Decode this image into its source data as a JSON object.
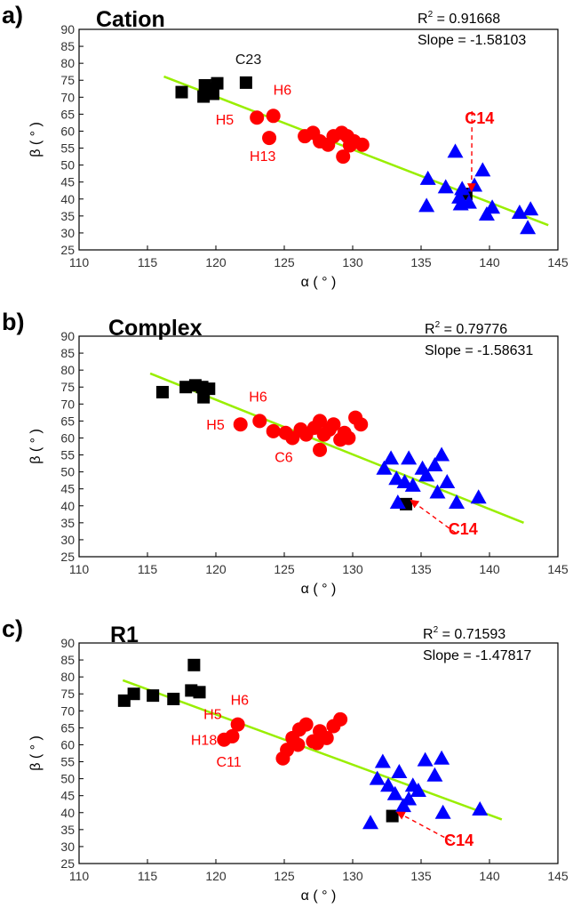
{
  "colors": {
    "group1": "#000000",
    "group2": "#ff0000",
    "group3": "#0000ff",
    "fit": "#99ee00",
    "highlight": "#ff0000",
    "label_black": "#111111"
  },
  "chart_data": [
    {
      "type": "scatter",
      "panel_letter": "a)",
      "title": "Cation",
      "stats": {
        "r2_prefix": "R",
        "r2_sup": "2",
        "r2_value": " = 0.91668",
        "slope": "Slope = -1.58103"
      },
      "xlabel": "α ( ° )",
      "ylabel": "β ( ° )",
      "xlim": [
        110,
        145
      ],
      "ylim": [
        25,
        90
      ],
      "xticks": [
        110,
        115,
        120,
        125,
        130,
        135,
        140,
        145
      ],
      "yticks": [
        25,
        30,
        35,
        40,
        45,
        50,
        55,
        60,
        65,
        70,
        75,
        80,
        85,
        90
      ],
      "fit_line": {
        "x": [
          116.2,
          144.3
        ],
        "y": [
          76.1,
          32.3
        ]
      },
      "series": [
        {
          "name": "black",
          "marker": "square",
          "color": "#000000",
          "points": [
            [
              117.5,
              71.5
            ],
            [
              119.2,
              73.5
            ],
            [
              119.5,
              72.5
            ],
            [
              119.1,
              70.2
            ],
            [
              120.1,
              74.1
            ],
            [
              119.8,
              71.0
            ],
            [
              122.2,
              74.3
            ],
            [
              138.3,
              41.5
            ]
          ]
        },
        {
          "name": "red",
          "marker": "circle",
          "color": "#ff0000",
          "points": [
            [
              123.0,
              64.0
            ],
            [
              124.2,
              64.5
            ],
            [
              123.9,
              58.0
            ],
            [
              126.5,
              58.5
            ],
            [
              127.1,
              59.5
            ],
            [
              127.6,
              57.0
            ],
            [
              128.2,
              56.0
            ],
            [
              128.6,
              58.5
            ],
            [
              129.2,
              59.5
            ],
            [
              129.6,
              58.5
            ],
            [
              129.8,
              55.8
            ],
            [
              129.3,
              52.5
            ],
            [
              130.1,
              57.0
            ],
            [
              130.7,
              56.0
            ]
          ]
        },
        {
          "name": "blue",
          "marker": "triangle",
          "color": "#0000ff",
          "points": [
            [
              135.5,
              46.0
            ],
            [
              135.4,
              38.0
            ],
            [
              136.8,
              43.5
            ],
            [
              137.5,
              54.0
            ],
            [
              137.8,
              40.5
            ],
            [
              137.9,
              38.5
            ],
            [
              138.0,
              43.0
            ],
            [
              138.5,
              39.0
            ],
            [
              138.9,
              44.0
            ],
            [
              139.5,
              48.5
            ],
            [
              139.8,
              35.5
            ],
            [
              140.2,
              37.5
            ],
            [
              142.2,
              36.0
            ],
            [
              143.0,
              37.0
            ],
            [
              142.8,
              31.5
            ]
          ]
        }
      ],
      "annotations": [
        {
          "text": "C23",
          "x": 122.2,
          "y": 75.0,
          "color": "#111111",
          "bold": false,
          "dx": -12,
          "dy": -18,
          "anchor": "start"
        },
        {
          "text": "H6",
          "x": 124.2,
          "y": 64.5,
          "color": "#ff0000",
          "bold": false,
          "dx": 0,
          "dy": -24,
          "anchor": "start"
        },
        {
          "text": "H5",
          "x": 123.0,
          "y": 64.0,
          "color": "#ff0000",
          "bold": false,
          "dx": -26,
          "dy": 8,
          "anchor": "end"
        },
        {
          "text": "H13",
          "x": 123.9,
          "y": 58.0,
          "color": "#ff0000",
          "bold": false,
          "dx": -22,
          "dy": 26,
          "anchor": "start"
        }
      ],
      "callout": {
        "text": "C14",
        "x": 138.3,
        "y": 41.5,
        "tx": 138.2,
        "ty": 62.2,
        "ldx": 0,
        "ldy": -14,
        "anchor": "start"
      }
    },
    {
      "type": "scatter",
      "panel_letter": "b)",
      "title": "Complex",
      "stats": {
        "r2_prefix": "R",
        "r2_sup": "2",
        "r2_value": " = 0.79776",
        "slope": "Slope = -1.58631"
      },
      "xlabel": "α ( ° )",
      "ylabel": "β ( ° )",
      "xlim": [
        110,
        145
      ],
      "ylim": [
        25,
        90
      ],
      "xticks": [
        110,
        115,
        120,
        125,
        130,
        135,
        140,
        145
      ],
      "yticks": [
        25,
        30,
        35,
        40,
        45,
        50,
        55,
        60,
        65,
        70,
        75,
        80,
        85,
        90
      ],
      "fit_line": {
        "x": [
          115.2,
          142.5
        ],
        "y": [
          79.0,
          35.0
        ]
      },
      "series": [
        {
          "name": "black",
          "marker": "square",
          "color": "#000000",
          "points": [
            [
              116.1,
              73.5
            ],
            [
              117.8,
              75.0
            ],
            [
              118.5,
              75.5
            ],
            [
              119.0,
              75.0
            ],
            [
              119.5,
              74.5
            ],
            [
              119.1,
              72.0
            ],
            [
              133.9,
              40.5
            ]
          ]
        },
        {
          "name": "red",
          "marker": "circle",
          "color": "#ff0000",
          "points": [
            [
              121.8,
              64.0
            ],
            [
              123.2,
              65.0
            ],
            [
              124.2,
              62.0
            ],
            [
              125.1,
              61.5
            ],
            [
              125.6,
              60.0
            ],
            [
              126.2,
              62.5
            ],
            [
              126.6,
              61.0
            ],
            [
              127.2,
              63.0
            ],
            [
              127.6,
              65.0
            ],
            [
              127.9,
              61.0
            ],
            [
              128.3,
              62.5
            ],
            [
              128.6,
              64.0
            ],
            [
              129.1,
              59.5
            ],
            [
              129.4,
              61.5
            ],
            [
              129.7,
              60.0
            ],
            [
              130.2,
              66.0
            ],
            [
              130.6,
              64.0
            ],
            [
              127.6,
              56.5
            ]
          ]
        },
        {
          "name": "blue",
          "marker": "triangle",
          "color": "#0000ff",
          "points": [
            [
              132.3,
              51.0
            ],
            [
              132.8,
              54.0
            ],
            [
              133.2,
              48.0
            ],
            [
              133.3,
              41.0
            ],
            [
              133.8,
              47.0
            ],
            [
              134.1,
              54.0
            ],
            [
              134.4,
              46.0
            ],
            [
              135.1,
              51.0
            ],
            [
              135.4,
              49.0
            ],
            [
              136.0,
              52.0
            ],
            [
              136.5,
              55.0
            ],
            [
              136.9,
              47.0
            ],
            [
              136.2,
              44.0
            ],
            [
              137.6,
              41.0
            ],
            [
              139.2,
              42.5
            ]
          ]
        }
      ],
      "annotations": [
        {
          "text": "H6",
          "x": 123.2,
          "y": 65.0,
          "color": "#ff0000",
          "bold": false,
          "dx": -12,
          "dy": -22,
          "anchor": "start"
        },
        {
          "text": "H5",
          "x": 121.8,
          "y": 64.0,
          "color": "#ff0000",
          "bold": false,
          "dx": -18,
          "dy": 6,
          "anchor": "end"
        },
        {
          "text": "C6",
          "x": 125.6,
          "y": 60.0,
          "color": "#ff0000",
          "bold": false,
          "dx": -20,
          "dy": 27,
          "anchor": "start"
        }
      ],
      "callout": {
        "text": "C14",
        "x": 133.9,
        "y": 40.5,
        "tx": 137.0,
        "ty": 31.5,
        "ldx": 0,
        "ldy": -2,
        "anchor": "start"
      }
    },
    {
      "type": "scatter",
      "panel_letter": "c)",
      "title": "R1",
      "stats": {
        "r2_prefix": "R",
        "r2_sup": "2",
        "r2_value": " = 0.71593",
        "slope": "Slope = -1.47817"
      },
      "xlabel": "α ( ° )",
      "ylabel": "β ( ° )",
      "xlim": [
        110,
        145
      ],
      "ylim": [
        25,
        90
      ],
      "xticks": [
        110,
        115,
        120,
        125,
        130,
        135,
        140,
        145
      ],
      "yticks": [
        25,
        30,
        35,
        40,
        45,
        50,
        55,
        60,
        65,
        70,
        75,
        80,
        85,
        90
      ],
      "fit_line": {
        "x": [
          113.2,
          140.9
        ],
        "y": [
          79.0,
          38.0
        ]
      },
      "series": [
        {
          "name": "black",
          "marker": "square",
          "color": "#000000",
          "points": [
            [
              113.3,
              73.0
            ],
            [
              114.0,
              75.0
            ],
            [
              115.4,
              74.5
            ],
            [
              116.9,
              73.5
            ],
            [
              118.2,
              76.0
            ],
            [
              118.8,
              75.5
            ],
            [
              118.4,
              83.5
            ],
            [
              132.9,
              39.0
            ]
          ]
        },
        {
          "name": "red",
          "marker": "circle",
          "color": "#ff0000",
          "points": [
            [
              120.6,
              61.5
            ],
            [
              121.2,
              62.5
            ],
            [
              121.6,
              66.0
            ],
            [
              124.9,
              56.0
            ],
            [
              125.2,
              58.5
            ],
            [
              125.6,
              62.0
            ],
            [
              126.1,
              64.5
            ],
            [
              126.6,
              66.0
            ],
            [
              127.1,
              61.0
            ],
            [
              127.6,
              64.0
            ],
            [
              128.1,
              62.0
            ],
            [
              128.6,
              65.5
            ],
            [
              129.1,
              67.5
            ],
            [
              127.4,
              60.5
            ],
            [
              126.0,
              60.0
            ]
          ]
        },
        {
          "name": "blue",
          "marker": "triangle",
          "color": "#0000ff",
          "points": [
            [
              131.3,
              37.0
            ],
            [
              131.8,
              50.0
            ],
            [
              132.2,
              55.0
            ],
            [
              132.6,
              48.0
            ],
            [
              133.1,
              45.5
            ],
            [
              133.4,
              52.0
            ],
            [
              133.7,
              42.0
            ],
            [
              134.1,
              44.0
            ],
            [
              134.4,
              48.0
            ],
            [
              134.8,
              46.5
            ],
            [
              135.3,
              55.5
            ],
            [
              136.0,
              51.0
            ],
            [
              136.5,
              56.0
            ],
            [
              136.6,
              40.0
            ],
            [
              139.3,
              41.0
            ]
          ]
        }
      ],
      "annotations": [
        {
          "text": "H6",
          "x": 121.6,
          "y": 66.0,
          "color": "#ff0000",
          "bold": false,
          "dx": -8,
          "dy": -22,
          "anchor": "start"
        },
        {
          "text": "H5",
          "x": 121.6,
          "y": 66.0,
          "color": "#ff0000",
          "bold": false,
          "dx": -18,
          "dy": -6,
          "anchor": "end"
        },
        {
          "text": "H18",
          "x": 120.6,
          "y": 61.5,
          "color": "#ff0000",
          "bold": false,
          "dx": -8,
          "dy": 6,
          "anchor": "end"
        },
        {
          "text": "C11",
          "x": 121.2,
          "y": 62.5,
          "color": "#ff0000",
          "bold": false,
          "dx": -18,
          "dy": 34,
          "anchor": "start"
        }
      ],
      "callout": {
        "text": "C14",
        "x": 132.9,
        "y": 39.0,
        "tx": 136.7,
        "ty": 30.3,
        "ldx": 0,
        "ldy": -5,
        "anchor": "start"
      }
    }
  ]
}
